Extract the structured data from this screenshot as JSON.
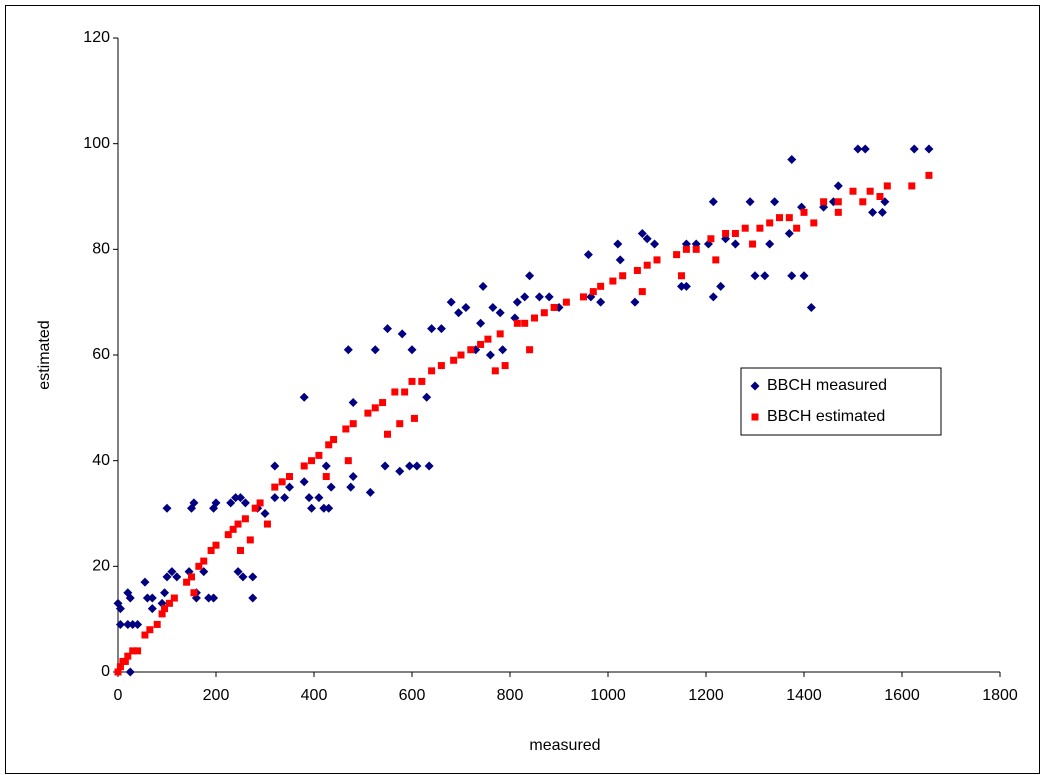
{
  "chart_data": {
    "type": "scatter",
    "x_label": "measured",
    "y_label": "estimated",
    "xlim": [
      0,
      1800
    ],
    "xticks": [
      0,
      200,
      400,
      600,
      800,
      1000,
      1200,
      1400,
      1600,
      1800
    ],
    "ylim": [
      0,
      120
    ],
    "yticks": [
      0,
      20,
      40,
      60,
      80,
      100,
      120
    ],
    "grid": false,
    "legend": "right",
    "series": [
      {
        "name": "BBCH measured",
        "color": "#000080",
        "marker": "diamond",
        "x": [
          0,
          5,
          5,
          20,
          25,
          20,
          30,
          25,
          40,
          55,
          60,
          70,
          70,
          90,
          100,
          95,
          100,
          110,
          120,
          150,
          155,
          145,
          160,
          160,
          175,
          185,
          195,
          200,
          195,
          230,
          240,
          245,
          250,
          255,
          260,
          275,
          275,
          285,
          300,
          320,
          320,
          340,
          350,
          380,
          380,
          390,
          395,
          410,
          420,
          425,
          430,
          435,
          470,
          475,
          480,
          480,
          515,
          525,
          545,
          550,
          575,
          580,
          595,
          600,
          610,
          630,
          635,
          640,
          660,
          680,
          695,
          710,
          730,
          740,
          745,
          760,
          765,
          780,
          785,
          810,
          815,
          830,
          840,
          860,
          880,
          900,
          960,
          965,
          985,
          1020,
          1025,
          1055,
          1070,
          1080,
          1095,
          1150,
          1160,
          1160,
          1180,
          1205,
          1215,
          1215,
          1230,
          1240,
          1260,
          1290,
          1300,
          1320,
          1330,
          1340,
          1370,
          1375,
          1375,
          1395,
          1400,
          1415,
          1440,
          1460,
          1470,
          1510,
          1525,
          1540,
          1560,
          1565,
          1625,
          1655
        ],
        "values": [
          13,
          12,
          9,
          15,
          14,
          9,
          9,
          0,
          9,
          17,
          14,
          12,
          14,
          13,
          18,
          15,
          31,
          19,
          18,
          31,
          32,
          19,
          15,
          14,
          19,
          14,
          31,
          32,
          14,
          32,
          33,
          19,
          33,
          18,
          32,
          18,
          14,
          31,
          30,
          39,
          33,
          33,
          35,
          52,
          36,
          33,
          31,
          33,
          31,
          39,
          31,
          35,
          61,
          35,
          51,
          37,
          34,
          61,
          39,
          65,
          38,
          64,
          39,
          61,
          39,
          52,
          39,
          65,
          65,
          70,
          68,
          69,
          61,
          66,
          73,
          60,
          69,
          68,
          61,
          67,
          70,
          71,
          75,
          71,
          71,
          69,
          79,
          71,
          70,
          81,
          78,
          70,
          83,
          82,
          81,
          73,
          73,
          81,
          81,
          81,
          71,
          89,
          73,
          82,
          81,
          89,
          75,
          75,
          81,
          89,
          83,
          97,
          75,
          88,
          75,
          69,
          88,
          89,
          92,
          99,
          99,
          87,
          87,
          89,
          99,
          99
        ]
      },
      {
        "name": "BBCH estimated",
        "color": "#ff0000",
        "marker": "square",
        "x": [
          0,
          5,
          10,
          15,
          20,
          30,
          40,
          55,
          65,
          80,
          90,
          95,
          105,
          115,
          140,
          150,
          155,
          165,
          175,
          190,
          200,
          225,
          235,
          245,
          250,
          260,
          270,
          280,
          290,
          305,
          320,
          335,
          350,
          380,
          395,
          410,
          425,
          430,
          440,
          465,
          470,
          480,
          510,
          525,
          540,
          550,
          565,
          575,
          585,
          600,
          605,
          620,
          640,
          660,
          685,
          700,
          720,
          740,
          755,
          770,
          780,
          790,
          815,
          830,
          840,
          850,
          870,
          890,
          915,
          950,
          970,
          985,
          1010,
          1030,
          1060,
          1080,
          1100,
          1070,
          1140,
          1150,
          1160,
          1180,
          1210,
          1220,
          1240,
          1260,
          1280,
          1295,
          1310,
          1330,
          1350,
          1370,
          1385,
          1400,
          1420,
          1440,
          1470,
          1470,
          1500,
          1520,
          1535,
          1555,
          1570,
          1620,
          1655
        ],
        "values": [
          0,
          1,
          2,
          2,
          3,
          4,
          4,
          7,
          8,
          9,
          11,
          12,
          13,
          14,
          17,
          18,
          15,
          20,
          21,
          23,
          24,
          26,
          27,
          28,
          23,
          29,
          25,
          31,
          32,
          28,
          35,
          36,
          37,
          39,
          40,
          41,
          37,
          43,
          44,
          46,
          40,
          47,
          49,
          50,
          51,
          45,
          53,
          47,
          53,
          55,
          48,
          55,
          57,
          58,
          59,
          60,
          61,
          62,
          63,
          57,
          64,
          58,
          66,
          66,
          61,
          67,
          68,
          69,
          70,
          71,
          72,
          73,
          74,
          75,
          76,
          77,
          78,
          72,
          79,
          75,
          80,
          80,
          82,
          78,
          83,
          83,
          84,
          81,
          84,
          85,
          86,
          86,
          84,
          87,
          85,
          89,
          89,
          87,
          91,
          89,
          91,
          90,
          92,
          92,
          94
        ]
      }
    ]
  }
}
